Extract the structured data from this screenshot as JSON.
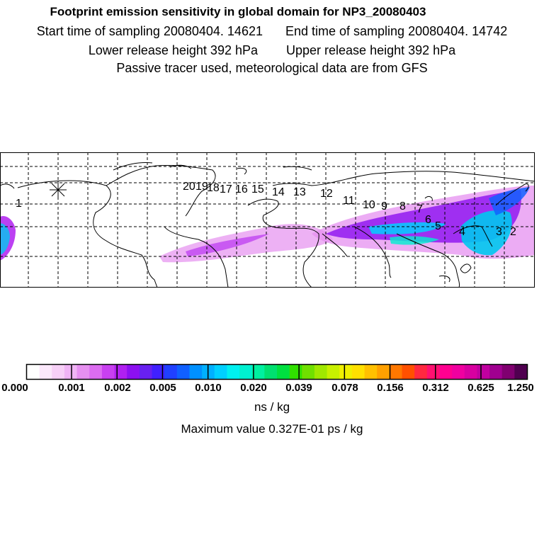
{
  "header": {
    "title": "Footprint emission sensitivity in global domain for NP3_20080403",
    "start_time": "Start time of sampling 20080404. 14621",
    "end_time": "End time of sampling 20080404. 14742",
    "lower_height": "Lower release height  392 hPa",
    "upper_height": "Upper release height  392 hPa",
    "tracer_note": "Passive tracer used, meteorological data are from GFS"
  },
  "map": {
    "trajectory_labels": [
      "1",
      "20",
      "19",
      "18",
      "17",
      "16",
      "15",
      "14",
      "13",
      "12",
      "11",
      "10",
      "9",
      "8",
      "7",
      "6",
      "5",
      "4",
      "3",
      "2"
    ]
  },
  "colorbar": {
    "colors": [
      "#ffffff",
      "#fbe8fb",
      "#f7d0f7",
      "#f0b4f5",
      "#e690f0",
      "#dc6cf0",
      "#c840f0",
      "#b020f0",
      "#8c10f0",
      "#6820f0",
      "#4020ff",
      "#2040ff",
      "#1060ff",
      "#0090ff",
      "#00b0ff",
      "#00d0ff",
      "#00f0f0",
      "#00f0d0",
      "#00f0a0",
      "#00e070",
      "#00e040",
      "#30e000",
      "#70e000",
      "#a0e800",
      "#c8f000",
      "#f0f000",
      "#ffe000",
      "#ffc000",
      "#ffa000",
      "#ff7800",
      "#ff5000",
      "#ff2840",
      "#ff1070",
      "#ff0090",
      "#f000a0",
      "#d800a0",
      "#c000a0",
      "#a00090",
      "#800070",
      "#500050"
    ],
    "tick_labels": [
      "0.000",
      "0.001",
      "0.002",
      "0.005",
      "0.010",
      "0.020",
      "0.039",
      "0.078",
      "0.156",
      "0.312",
      "0.625",
      "1.250"
    ],
    "unit": "ns / kg",
    "max_value": "Maximum value  0.327E-01 ps / kg"
  }
}
